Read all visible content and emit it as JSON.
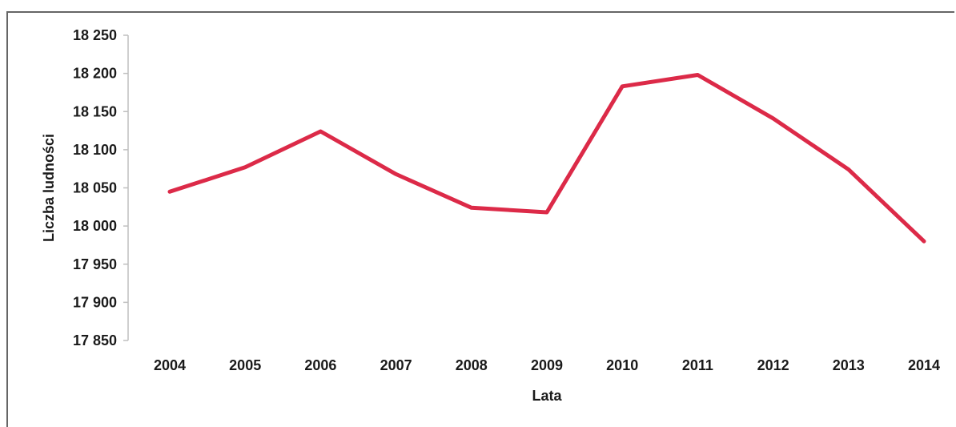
{
  "chart_data": {
    "type": "line",
    "title": "",
    "xlabel": "Lata",
    "ylabel": "Liczba ludności",
    "x": [
      "2004",
      "2005",
      "2006",
      "2007",
      "2008",
      "2009",
      "2010",
      "2011",
      "2012",
      "2013",
      "2014"
    ],
    "series": [
      {
        "values": [
          18045,
          18077,
          18124,
          18068,
          18024,
          18018,
          18183,
          18198,
          18141,
          18074,
          17980
        ]
      }
    ],
    "ylim": [
      17850,
      18250
    ],
    "yticks": [
      17850,
      17900,
      17950,
      18000,
      18050,
      18100,
      18150,
      18200,
      18250
    ],
    "ytick_labels": [
      "17 850",
      "17 900",
      "17 950",
      "18 000",
      "18 050",
      "18 100",
      "18 150",
      "18 200",
      "18 250"
    ],
    "grid": false,
    "legend": "none",
    "line_color": "#dc2a48"
  }
}
